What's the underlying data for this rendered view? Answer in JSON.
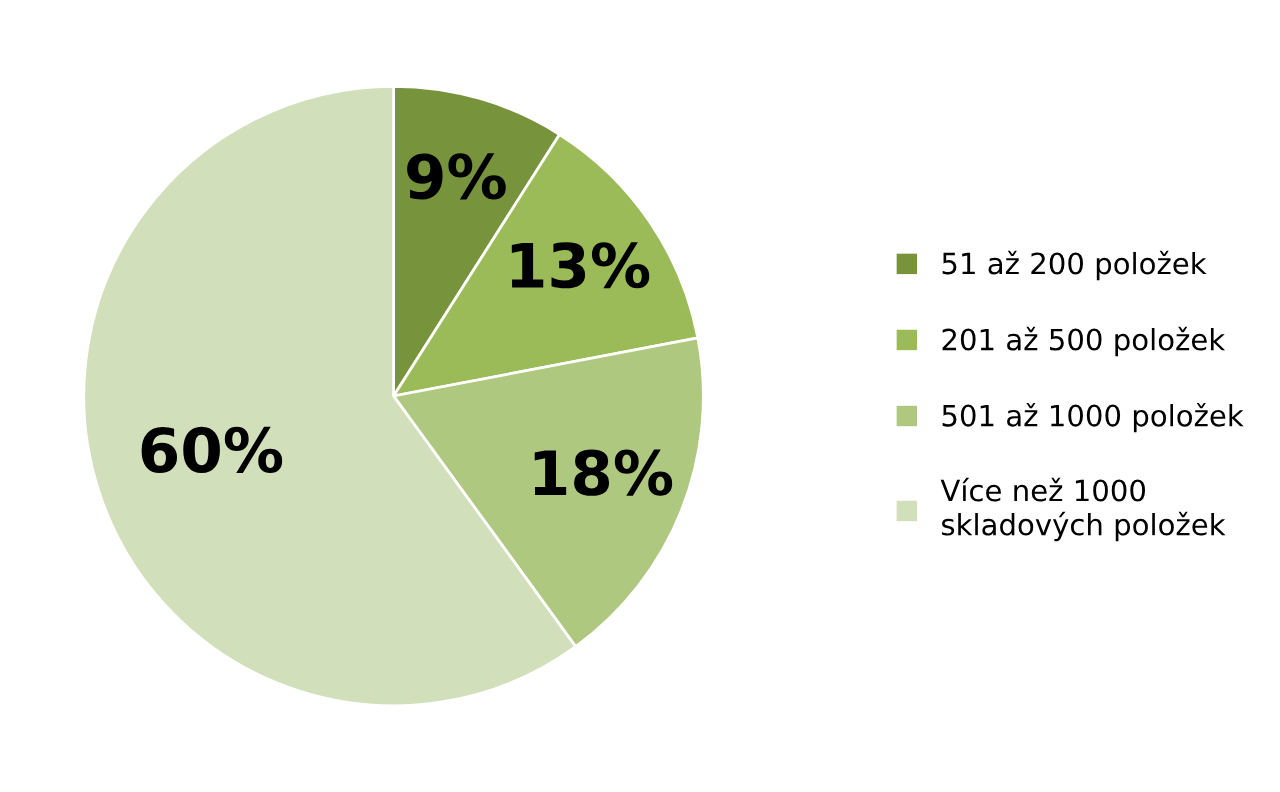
{
  "chart_data": {
    "type": "pie",
    "categories": [
      "51 až 200 položek",
      "201 až 500 položek",
      "501 až 1000 položek",
      "Více než 1000\nskladových položek"
    ],
    "values": [
      9,
      13,
      18,
      60
    ],
    "value_labels": [
      "9%",
      "13%",
      "18%",
      "60%"
    ],
    "colors": [
      "#77933c",
      "#9bbb59",
      "#afc87f",
      "#d1dfbb"
    ],
    "legend": "right"
  }
}
